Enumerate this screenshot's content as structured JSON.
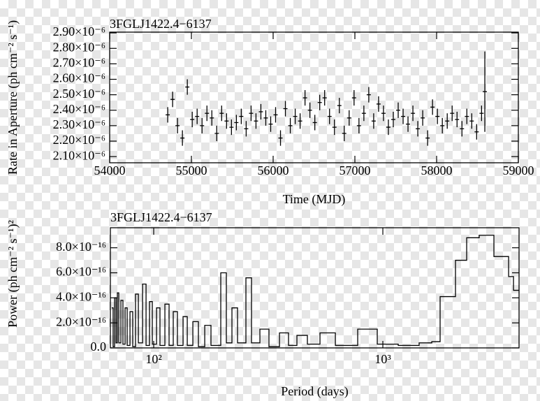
{
  "chart_data": [
    {
      "type": "errorbar",
      "title": "3FGLJ1422.4−6137",
      "x_label": "Time (MJD)",
      "y_label": "Rate in Aperture (ph cm⁻² s⁻¹)",
      "x": [
        54710,
        54770,
        54830,
        54890,
        54950,
        55010,
        55070,
        55130,
        55190,
        55250,
        55310,
        55370,
        55430,
        55490,
        55550,
        55610,
        55670,
        55730,
        55790,
        55850,
        55910,
        55970,
        56030,
        56090,
        56150,
        56210,
        56270,
        56330,
        56390,
        56450,
        56510,
        56570,
        56630,
        56690,
        56750,
        56810,
        56870,
        56930,
        56990,
        57050,
        57110,
        57170,
        57230,
        57290,
        57350,
        57410,
        57470,
        57530,
        57590,
        57650,
        57710,
        57770,
        57830,
        57890,
        57950,
        58010,
        58070,
        58130,
        58190,
        58250,
        58310,
        58370,
        58430,
        58490,
        58550,
        58590
      ],
      "values": [
        2.37e-06,
        2.47e-06,
        2.3e-06,
        2.22e-06,
        2.55e-06,
        2.34e-06,
        2.36e-06,
        2.3e-06,
        2.38e-06,
        2.35e-06,
        2.25e-06,
        2.38e-06,
        2.33e-06,
        2.29e-06,
        2.32e-06,
        2.36e-06,
        2.28e-06,
        2.38e-06,
        2.33e-06,
        2.39e-06,
        2.35e-06,
        2.31e-06,
        2.37e-06,
        2.22e-06,
        2.41e-06,
        2.3e-06,
        2.36e-06,
        2.33e-06,
        2.48e-06,
        2.4e-06,
        2.32e-06,
        2.45e-06,
        2.48e-06,
        2.36e-06,
        2.29e-06,
        2.43e-06,
        2.25e-06,
        2.35e-06,
        2.48e-06,
        2.3e-06,
        2.38e-06,
        2.5e-06,
        2.33e-06,
        2.44e-06,
        2.38e-06,
        2.29e-06,
        2.34e-06,
        2.4e-06,
        2.36e-06,
        2.31e-06,
        2.38e-06,
        2.28e-06,
        2.35e-06,
        2.22e-06,
        2.42e-06,
        2.36e-06,
        2.3e-06,
        2.33e-06,
        2.38e-06,
        2.34e-06,
        2.28e-06,
        2.36e-06,
        2.33e-06,
        2.26e-06,
        2.38e-06,
        2.52e-06
      ],
      "errors": [
        5e-08,
        5e-08,
        5e-08,
        5e-08,
        5e-08,
        5e-08,
        5e-08,
        5e-08,
        5e-08,
        5e-08,
        5e-08,
        5e-08,
        5e-08,
        5e-08,
        5e-08,
        5e-08,
        5e-08,
        5e-08,
        5e-08,
        5e-08,
        5e-08,
        5e-08,
        5e-08,
        5e-08,
        5e-08,
        5e-08,
        5e-08,
        5e-08,
        5e-08,
        5e-08,
        5e-08,
        5e-08,
        5e-08,
        5e-08,
        5e-08,
        5e-08,
        5e-08,
        5e-08,
        5e-08,
        5e-08,
        5e-08,
        5e-08,
        5e-08,
        5e-08,
        5e-08,
        5e-08,
        5e-08,
        5e-08,
        5e-08,
        5e-08,
        5e-08,
        5e-08,
        5e-08,
        5e-08,
        5e-08,
        5e-08,
        5e-08,
        5e-08,
        5e-08,
        5e-08,
        5e-08,
        5e-08,
        5e-08,
        5e-08,
        5e-08,
        2.6e-07
      ],
      "color": "#000000",
      "xlim": [
        54000,
        59000
      ],
      "xticks": [
        54000,
        55000,
        56000,
        57000,
        58000,
        59000
      ],
      "ylim": [
        2.06e-06,
        2.905e-06
      ],
      "yticks": [
        {
          "value": 2.1e-06,
          "label": "2.10×10⁻⁶"
        },
        {
          "value": 2.2e-06,
          "label": "2.20×10⁻⁶"
        },
        {
          "value": 2.3e-06,
          "label": "2.30×10⁻⁶"
        },
        {
          "value": 2.4e-06,
          "label": "2.40×10⁻⁶"
        },
        {
          "value": 2.5e-06,
          "label": "2.50×10⁻⁶"
        },
        {
          "value": 2.6e-06,
          "label": "2.60×10⁻⁶"
        },
        {
          "value": 2.7e-06,
          "label": "2.70×10⁻⁶"
        },
        {
          "value": 2.8e-06,
          "label": "2.80×10⁻⁶"
        },
        {
          "value": 2.9e-06,
          "label": "2.90×10⁻⁶"
        }
      ]
    },
    {
      "type": "line",
      "step": true,
      "log_x": true,
      "title": "3FGLJ1422.4−6137",
      "x_label": "Period (days)",
      "y_label": "Power (ph cm⁻² s⁻¹)²",
      "x": [
        65.6,
        66.5,
        67.5,
        68.5,
        69.4,
        70.4,
        71.9,
        73.4,
        75.0,
        76.6,
        78.8,
        81.0,
        83.3,
        85.7,
        89.4,
        92.6,
        95.9,
        98.6,
        102.9,
        106.5,
        111.9,
        116.7,
        121.7,
        126.9,
        134.3,
        140.1,
        148.2,
        156.7,
        167.0,
        177.8,
        196.2,
        207.5,
        219.5,
        232.2,
        252.6,
        267.2,
        290.7,
        318.4,
        353.9,
        387.6,
        421.7,
        468.5,
        531.7,
        620.6,
        776.7,
        945.4,
        1167,
        1440,
        1635,
        1778,
        2075,
        2322,
        2634,
        3053,
        3539,
        3717
      ],
      "values": [
        3.2e-16,
        1e-17,
        4e-16,
        4e-17,
        4.4e-16,
        4e-17,
        3.8e-16,
        3e-17,
        3.2e-16,
        2e-17,
        2.9e-16,
        1e-17,
        4.3e-16,
        4e-17,
        5.1e-16,
        2e-17,
        3.7e-16,
        3e-17,
        3.2e-16,
        2e-17,
        3.5e-16,
        2e-17,
        2.9e-16,
        2e-17,
        2.5e-16,
        2e-17,
        2.1e-16,
        1e-17,
        1.8e-16,
        2e-17,
        6e-16,
        4e-17,
        3.2e-16,
        4e-17,
        5.6e-16,
        4e-17,
        1.5e-16,
        1e-17,
        1.2e-16,
        2e-17,
        1e-16,
        3e-17,
        1.2e-16,
        2e-17,
        1.5e-16,
        3e-17,
        2e-17,
        4e-17,
        5e-17,
        4.1e-16,
        7e-16,
        8.8e-16,
        9e-16,
        7.3e-16,
        5.7e-16,
        4.6e-16
      ],
      "color": "#000000",
      "xlim": [
        64.7,
        3930
      ],
      "xticks": [
        {
          "value": 100,
          "label": "10²"
        },
        {
          "value": 1000,
          "label": "10³"
        }
      ],
      "ylim": [
        0,
        9.6e-16
      ],
      "yticks": [
        {
          "value": 0,
          "label": "0.0"
        },
        {
          "value": 2e-16,
          "label": "2.0×10⁻¹⁶"
        },
        {
          "value": 4e-16,
          "label": "4.0×10⁻¹⁶"
        },
        {
          "value": 6e-16,
          "label": "6.0×10⁻¹⁶"
        },
        {
          "value": 8e-16,
          "label": "8.0×10⁻¹⁶"
        }
      ]
    }
  ]
}
